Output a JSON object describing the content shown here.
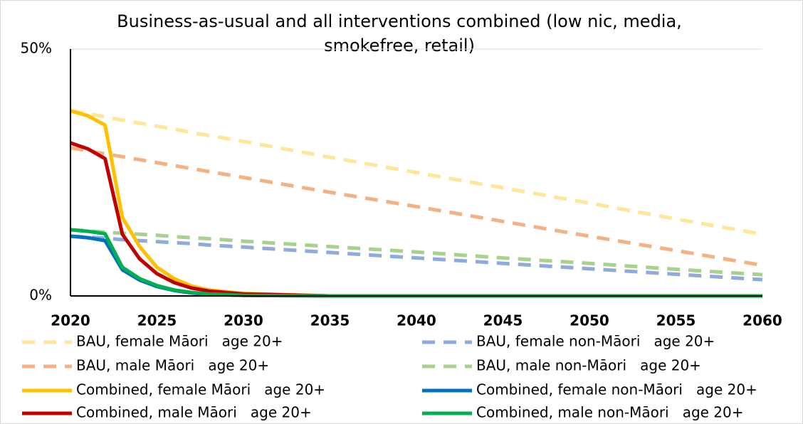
{
  "chart_data": {
    "type": "line",
    "title": "Business-as-usual and all interventions combined (low nic, media, smokefree, retail)",
    "x": [
      2020,
      2021,
      2022,
      2023,
      2024,
      2025,
      2026,
      2027,
      2028,
      2030,
      2035,
      2040,
      2045,
      2050,
      2055,
      2060
    ],
    "xlim": [
      2020,
      2060
    ],
    "xticks": [
      2020,
      2025,
      2030,
      2035,
      2040,
      2045,
      2050,
      2055,
      2060
    ],
    "ylim": [
      0,
      50
    ],
    "yticks": [
      {
        "value": 0,
        "label": "0%"
      },
      {
        "value": 50,
        "label": "50%"
      }
    ],
    "grid": true,
    "series": [
      {
        "name": "BAU, female Māori   age 20+",
        "color": "#ffe699",
        "dashed": true,
        "values": [
          37.5,
          36.9,
          36.3,
          35.6,
          35.0,
          34.4,
          33.8,
          33.1,
          32.5,
          31.3,
          28.1,
          25.0,
          21.9,
          18.8,
          15.6,
          12.5
        ]
      },
      {
        "name": "BAU, female non-Māori   age 20+",
        "color": "#8faadc",
        "dashed": true,
        "values": [
          12.1,
          11.9,
          11.7,
          11.4,
          11.2,
          11.0,
          10.8,
          10.6,
          10.3,
          9.9,
          8.8,
          7.7,
          6.6,
          5.5,
          4.4,
          3.3
        ]
      },
      {
        "name": "BAU, male Māori   age 20+",
        "color": "#f4b183",
        "dashed": true,
        "values": [
          30.0,
          29.4,
          28.8,
          28.2,
          27.6,
          27.0,
          26.4,
          25.8,
          25.2,
          24.0,
          21.0,
          18.1,
          15.1,
          12.1,
          9.2,
          6.2
        ]
      },
      {
        "name": "BAU, male non-Māori   age 20+",
        "color": "#a9d18e",
        "dashed": true,
        "values": [
          13.4,
          13.2,
          12.9,
          12.7,
          12.5,
          12.3,
          12.0,
          11.8,
          11.6,
          11.1,
          10.0,
          8.9,
          7.7,
          6.6,
          5.4,
          4.3
        ]
      },
      {
        "name": "Combined, female Māori   age 20+",
        "color": "#ffc000",
        "dashed": false,
        "values": [
          37.5,
          36.5,
          34.6,
          15.9,
          10.0,
          5.8,
          3.5,
          2.0,
          1.2,
          0.5,
          0,
          0,
          0,
          0,
          0,
          0
        ]
      },
      {
        "name": "Combined, female non-Māori   age 20+",
        "color": "#0070c0",
        "dashed": false,
        "values": [
          12.1,
          11.8,
          11.2,
          5.3,
          3.2,
          1.9,
          1.1,
          0.6,
          0.3,
          0.1,
          0,
          0,
          0,
          0,
          0,
          0
        ]
      },
      {
        "name": "Combined, male Māori   age 20+",
        "color": "#c00000",
        "dashed": false,
        "values": [
          31.0,
          29.8,
          27.8,
          12.5,
          7.5,
          4.5,
          2.7,
          1.6,
          1.0,
          0.4,
          0,
          0,
          0,
          0,
          0,
          0
        ]
      },
      {
        "name": "Combined, male non-Māori   age 20+",
        "color": "#00b050",
        "dashed": false,
        "values": [
          13.4,
          13.1,
          12.6,
          5.8,
          3.5,
          2.1,
          1.2,
          0.7,
          0.4,
          0.1,
          0,
          0,
          0,
          0,
          0,
          0
        ]
      }
    ]
  }
}
